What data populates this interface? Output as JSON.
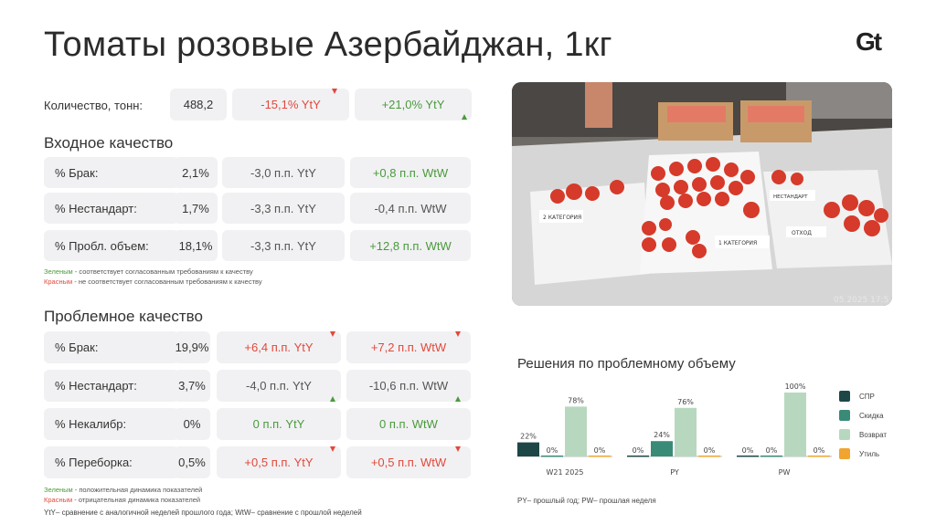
{
  "title": "Томаты розовые Азербайджан, 1кг",
  "logo": "Gt",
  "quantity": {
    "label": "Количество, тонн:",
    "value": "488,2",
    "yty": "-15,1% YtY",
    "wtw": "+21,0% YtY"
  },
  "input_quality": {
    "heading": "Входное качество",
    "rows": [
      {
        "label": "% Брак:",
        "value": "2,1%",
        "yty": "-3,0 п.п. YtY",
        "wtw": "+0,8 п.п. WtW"
      },
      {
        "label": "% Нестандарт:",
        "value": "1,7%",
        "yty": "-3,3 п.п. YtY",
        "wtw": "-0,4 п.п. WtW"
      },
      {
        "label": "% Пробл. объем:",
        "value": "18,1%",
        "yty": "-3,3 п.п. YtY",
        "wtw": "+12,8 п.п. WtW"
      }
    ],
    "note_green_word": "Зеленым",
    "note_green_text": " - соответствует согласованным требованиям к качеству",
    "note_red_word": "Красным",
    "note_red_text": " - не соответствует согласованным требованиям к качеству"
  },
  "problem_quality": {
    "heading": "Проблемное качество",
    "rows": [
      {
        "label": "% Брак:",
        "value": "19,9%",
        "yty": "+6,4 п.п. YtY",
        "wtw": "+7,2 п.п. WtW"
      },
      {
        "label": "% Нестандарт:",
        "value": "3,7%",
        "yty": "-4,0 п.п. YtY",
        "wtw": "-10,6 п.п. WtW"
      },
      {
        "label": "% Некалибр:",
        "value": "0%",
        "yty": "0 п.п. YtY",
        "wtw": "0 п.п. WtW"
      },
      {
        "label": "% Переборка:",
        "value": "0,5%",
        "yty": "+0,5 п.п. YtY",
        "wtw": "+0,5 п.п. WtW"
      }
    ],
    "note_green_word": "Зеленым",
    "note_green_text": " - положительная динамика показателей",
    "note_red_word": "Красным",
    "note_red_text": " - отрицательная динамика показателей",
    "footnote": "YtY– сравнение с аналогичной неделей прошлого года; WtW– сравнение с прошлой неделей"
  },
  "photo": {
    "stamp": "05.2025 17:5",
    "label_1": "1 КАТЕГОРИЯ",
    "label_2": "2 КАТЕГОРИЯ",
    "label_3": "НЕСТАНДАРТ",
    "label_4": "ОТХОД"
  },
  "chart_data": {
    "type": "bar",
    "title": "Решения по проблемному объему",
    "categories": [
      "W21 2025",
      "PY",
      "PW"
    ],
    "series": [
      {
        "name": "СПР",
        "color": "#1d4747",
        "values": [
          22,
          0,
          0
        ]
      },
      {
        "name": "Скидка",
        "color": "#3a8a78",
        "values": [
          0,
          24,
          0
        ]
      },
      {
        "name": "Возврат",
        "color": "#b7d8bf",
        "values": [
          78,
          76,
          100
        ]
      },
      {
        "name": "Утиль",
        "color": "#f0a530",
        "values": [
          0,
          0,
          0
        ]
      }
    ],
    "ylim": [
      0,
      100
    ],
    "value_suffix": "%",
    "footnote": "PY– прошлый год;  PW– прошлая неделя"
  }
}
